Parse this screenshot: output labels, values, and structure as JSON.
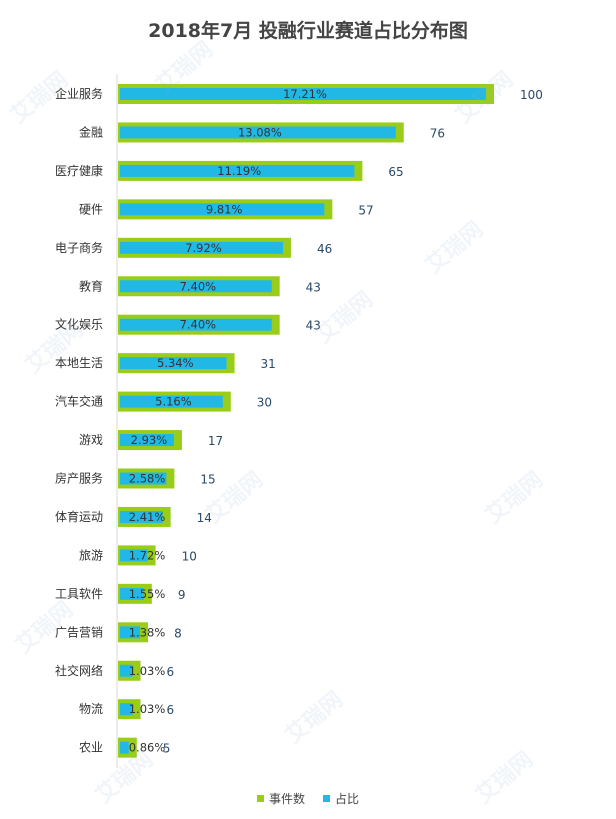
{
  "chart_data": {
    "type": "bar",
    "orientation": "horizontal",
    "title": "2018年7月 投融行业赛道占比分布图",
    "categories": [
      "企业服务",
      "金融",
      "医疗健康",
      "硬件",
      "电子商务",
      "教育",
      "文化娱乐",
      "本地生活",
      "汽车交通",
      "游戏",
      "房产服务",
      "体育运动",
      "旅游",
      "工具软件",
      "广告营销",
      "社交网络",
      "物流",
      "农业"
    ],
    "series": [
      {
        "name": "事件数",
        "color": "#9acd1a",
        "values": [
          100,
          76,
          65,
          57,
          46,
          43,
          43,
          31,
          30,
          17,
          15,
          14,
          10,
          9,
          8,
          6,
          6,
          5
        ]
      },
      {
        "name": "占比",
        "color": "#21b8e6",
        "values": [
          "17.21%",
          "13.08%",
          "11.19%",
          "9.81%",
          "7.92%",
          "7.40%",
          "7.40%",
          "5.34%",
          "5.16%",
          "2.93%",
          "2.58%",
          "2.41%",
          "1.72%",
          "1.55%",
          "1.38%",
          "1.03%",
          "1.03%",
          "0.86%"
        ]
      }
    ],
    "legend_position": "bottom-center",
    "grid": false
  },
  "watermark": "艾瑞网"
}
